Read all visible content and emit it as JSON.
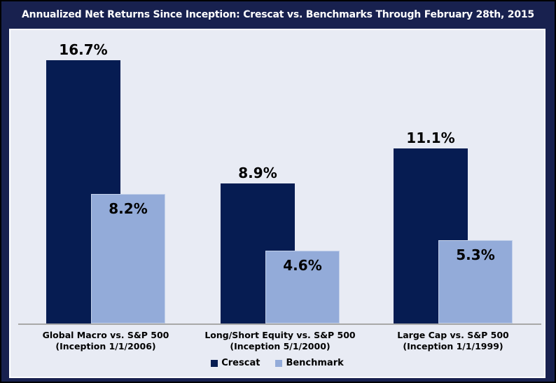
{
  "header": {
    "title": "Annualized Net Returns Since Inception: Crescat vs. Benchmarks Through February 28th, 2015"
  },
  "colors": {
    "frame_navy": "#18214F",
    "title_text": "#FFFFFF",
    "plot_background": "#E8EBF4",
    "axis_line": "#A8A8A8",
    "crescat_navy": "#061C52",
    "benchmark_light_blue": "#93ABD9",
    "label_text": "#000000"
  },
  "chart_data": {
    "type": "bar",
    "title": "Annualized Net Returns Since Inception: Crescat vs. Benchmarks Through February 28th, 2015",
    "categories": [
      "Global Macro vs. S&P 500\n(Inception 1/1/2006)",
      "Long/Short Equity vs. S&P 500\n(Inception 5/1/2000)",
      "Large Cap vs. S&P 500\n(Inception 1/1/1999)"
    ],
    "series": [
      {
        "name": "Crescat",
        "color": "#061C52",
        "values": [
          16.7,
          8.9,
          11.1
        ],
        "value_label_placement": "above-bar"
      },
      {
        "name": "Benchmark",
        "color": "#93ABD9",
        "values": [
          8.2,
          4.6,
          5.3
        ],
        "value_label_placement": "inside-top"
      }
    ],
    "value_labels": [
      [
        "16.7%",
        "8.9%",
        "11.1%"
      ],
      [
        "8.2%",
        "4.6%",
        "5.3%"
      ]
    ],
    "value_suffix": "%",
    "xlabel": "",
    "ylabel": "",
    "ylim": [
      0,
      18.6
    ],
    "grid": false,
    "y_axis_visible": false,
    "legend_position": "bottom"
  }
}
